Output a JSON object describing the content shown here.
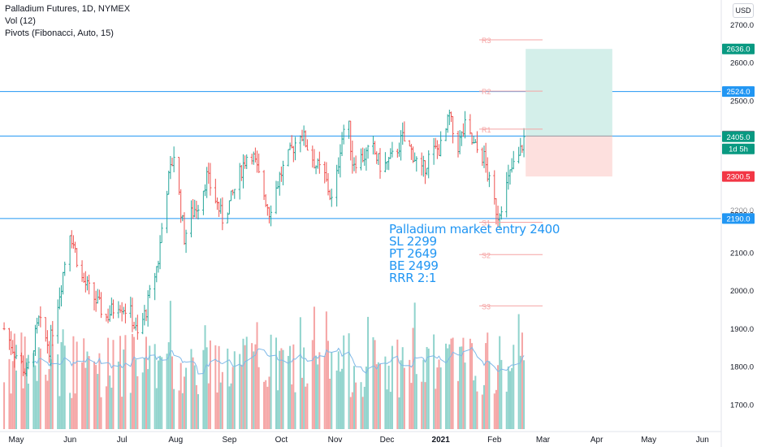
{
  "legend": {
    "symbol": "Palladium Futures, 1D, NYMEX",
    "volume": "Vol (12)",
    "pivots": "Pivots (Fibonacci, Auto, 15)"
  },
  "currency_button": "USD",
  "annotation": {
    "lines": [
      "Palladium market entry 2400",
      "SL 2299",
      "PT 2649",
      "BE 2499",
      "RRR 2:1"
    ]
  },
  "chart_data": {
    "type": "ohlc",
    "title": "Palladium Futures, 1D, NYMEX",
    "y_axis": {
      "ylim": [
        1630,
        2735
      ],
      "ticks": [
        1700,
        1800,
        1900,
        2000,
        2100,
        2200,
        2300,
        2400,
        2500,
        2600,
        2700
      ],
      "tick_labels": [
        "1700.0",
        "1800.0",
        "1900.0",
        "2000.0",
        "2100.0",
        "2200.0",
        "2300.0",
        "2400.0",
        "2500.0",
        "2600.0",
        "2700.0"
      ],
      "position": "right"
    },
    "x_axis": {
      "month_labels": [
        "May",
        "Jun",
        "Jul",
        "Aug",
        "Sep",
        "Oct",
        "Nov",
        "Dec",
        "2021",
        "Feb",
        "Mar",
        "Apr",
        "May",
        "Jun"
      ],
      "month_start_dates": [
        "2020-05-01",
        "2020-06-01",
        "2020-07-01",
        "2020-08-01",
        "2020-09-01",
        "2020-10-01",
        "2020-11-01",
        "2020-12-01",
        "2021-01-01",
        "2021-02-01",
        "2021-03-01",
        "2021-04-01",
        "2021-05-01",
        "2021-06-01"
      ]
    },
    "price_anchors": [
      [
        "2020-04-24",
        1900
      ],
      [
        "2020-04-30",
        1840
      ],
      [
        "2020-05-07",
        1780
      ],
      [
        "2020-05-14",
        1920
      ],
      [
        "2020-05-20",
        1850
      ],
      [
        "2020-05-27",
        2020
      ],
      [
        "2020-06-01",
        2160
      ],
      [
        "2020-06-08",
        2030
      ],
      [
        "2020-06-15",
        1980
      ],
      [
        "2020-06-22",
        1930
      ],
      [
        "2020-06-29",
        1970
      ],
      [
        "2020-07-06",
        1940
      ],
      [
        "2020-07-10",
        1880
      ],
      [
        "2020-07-15",
        1950
      ],
      [
        "2020-07-22",
        2080
      ],
      [
        "2020-07-26",
        2250
      ],
      [
        "2020-07-31",
        2360
      ],
      [
        "2020-08-03",
        2250
      ],
      [
        "2020-08-06",
        2140
      ],
      [
        "2020-08-10",
        2200
      ],
      [
        "2020-08-14",
        2230
      ],
      [
        "2020-08-19",
        2300
      ],
      [
        "2020-08-24",
        2240
      ],
      [
        "2020-08-28",
        2190
      ],
      [
        "2020-09-02",
        2240
      ],
      [
        "2020-09-08",
        2320
      ],
      [
        "2020-09-13",
        2380
      ],
      [
        "2020-09-18",
        2300
      ],
      [
        "2020-09-24",
        2210
      ],
      [
        "2020-09-30",
        2300
      ],
      [
        "2020-10-06",
        2360
      ],
      [
        "2020-10-12",
        2420
      ],
      [
        "2020-10-16",
        2380
      ],
      [
        "2020-10-21",
        2330
      ],
      [
        "2020-10-26",
        2300
      ],
      [
        "2020-10-31",
        2220
      ],
      [
        "2020-11-04",
        2380
      ],
      [
        "2020-11-08",
        2470
      ],
      [
        "2020-11-11",
        2340
      ],
      [
        "2020-11-16",
        2350
      ],
      [
        "2020-11-23",
        2370
      ],
      [
        "2020-11-28",
        2320
      ],
      [
        "2020-12-04",
        2350
      ],
      [
        "2020-12-10",
        2400
      ],
      [
        "2020-12-16",
        2360
      ],
      [
        "2020-12-21",
        2310
      ],
      [
        "2020-12-26",
        2360
      ],
      [
        "2021-01-02",
        2380
      ],
      [
        "2021-01-06",
        2460
      ],
      [
        "2021-01-10",
        2370
      ],
      [
        "2021-01-15",
        2430
      ],
      [
        "2021-01-20",
        2380
      ],
      [
        "2021-01-26",
        2350
      ],
      [
        "2021-01-30",
        2260
      ],
      [
        "2021-02-03",
        2200
      ],
      [
        "2021-02-07",
        2260
      ],
      [
        "2021-02-11",
        2320
      ],
      [
        "2021-02-15",
        2350
      ],
      [
        "2021-02-18",
        2400
      ]
    ],
    "volume_ma_period": 12,
    "levels": {
      "horizontal_lines": [
        2524.0,
        2407.0,
        2190.0
      ],
      "pivots": {
        "R3": 2660,
        "R2": 2525,
        "R1": 2425,
        "S1": 2180,
        "S2": 2095,
        "S3": 1960
      }
    },
    "position_tool": {
      "entry": 2407.0,
      "take_profit": 2636.0,
      "stop": 2300.5,
      "start_date": "2021-02-19",
      "end_date": "2021-04-10"
    },
    "price_labels": [
      {
        "text": "2636.0",
        "value": 2636.0,
        "color": "#089981"
      },
      {
        "text": "2524.0",
        "value": 2524.0,
        "color": "#2196f3"
      },
      {
        "text": "2407.0",
        "value": 2407.0,
        "color": "#787b86"
      },
      {
        "text": "2405.0",
        "value": 2405.0,
        "color": "#089981"
      },
      {
        "text": "1d 5h",
        "value": 2373.0,
        "color": "#089981"
      },
      {
        "text": "2300.5",
        "value": 2300.5,
        "color": "#f23645"
      },
      {
        "text": "2190.0",
        "value": 2190.0,
        "color": "#2196f3"
      }
    ],
    "partial_labels": [
      "2200.0"
    ],
    "colors": {
      "up": "#26a69a",
      "down": "#ef5350",
      "vol_up": "#8fd3cc",
      "vol_down": "#f5a4a4",
      "line": "#2196f3",
      "pivot": "#f5a4a4",
      "profit_zone": "#d4efea",
      "loss_zone": "#fde0de"
    }
  }
}
